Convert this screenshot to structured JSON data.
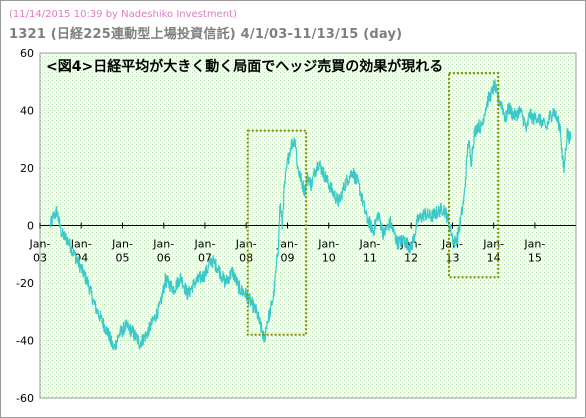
{
  "header": {
    "timestamp": "(11/14/2015 10:39 by Nadeshiko Investment)",
    "title": "1321 (日経225連動型上場投資信託) 4/1/03-11/13/15 (day)"
  },
  "colors": {
    "line": "#3cc8c8",
    "box": "#8a8a00",
    "plot_bg": "#f4fbf1",
    "grid": "#8fd08f"
  },
  "chart_data": {
    "type": "line",
    "title": "<図4>日経平均が大きく動く局面でヘッジ売買の効果が現れる",
    "xlabel": "",
    "ylabel": "",
    "ylim": [
      -60,
      60
    ],
    "yticks": [
      -60,
      -40,
      -20,
      0,
      20,
      40,
      60
    ],
    "grid": true,
    "x_tick_labels": [
      "Jan-\n03",
      "Jan-\n04",
      "Jan-\n05",
      "Jan-\n06",
      "Jan-\n07",
      "Jan-\n08",
      "Jan-\n09",
      "Jan-\n10",
      "Jan-\n11",
      "Jan-\n12",
      "Jan-\n13",
      "Jan-\n14",
      "Jan-\n15"
    ],
    "x_tick_dates": [
      "2003-01-01",
      "2004-01-01",
      "2005-01-01",
      "2006-01-01",
      "2007-01-01",
      "2008-01-01",
      "2009-01-01",
      "2010-01-01",
      "2011-01-01",
      "2012-01-01",
      "2013-01-01",
      "2014-01-01",
      "2015-01-01"
    ],
    "xlim": [
      "2003-01-01",
      "2015-12-31"
    ],
    "series": [
      {
        "values": [
          [
            "2003-04-01",
            0
          ],
          [
            "2003-05-01",
            3
          ],
          [
            "2003-06-01",
            5
          ],
          [
            "2003-06-20",
            1
          ],
          [
            "2003-07-15",
            -3
          ],
          [
            "2003-09-01",
            -5
          ],
          [
            "2003-11-01",
            -10
          ],
          [
            "2004-01-01",
            -15
          ],
          [
            "2004-03-01",
            -20
          ],
          [
            "2004-05-01",
            -28
          ],
          [
            "2004-07-01",
            -33
          ],
          [
            "2004-09-01",
            -38
          ],
          [
            "2004-10-15",
            -43
          ],
          [
            "2004-12-01",
            -38
          ],
          [
            "2005-02-01",
            -35
          ],
          [
            "2005-04-01",
            -37
          ],
          [
            "2005-06-01",
            -41
          ],
          [
            "2005-08-01",
            -38
          ],
          [
            "2005-10-01",
            -33
          ],
          [
            "2005-12-01",
            -28
          ],
          [
            "2006-01-15",
            -19
          ],
          [
            "2006-04-01",
            -22
          ],
          [
            "2006-06-01",
            -18
          ],
          [
            "2006-08-01",
            -24
          ],
          [
            "2006-10-01",
            -20
          ],
          [
            "2007-01-01",
            -17
          ],
          [
            "2007-03-01",
            -12
          ],
          [
            "2007-05-01",
            -15
          ],
          [
            "2007-07-01",
            -20
          ],
          [
            "2007-09-01",
            -16
          ],
          [
            "2007-11-01",
            -22
          ],
          [
            "2008-01-01",
            -24
          ],
          [
            "2008-02-15",
            -27
          ],
          [
            "2008-04-01",
            -30
          ],
          [
            "2008-05-15",
            -36
          ],
          [
            "2008-06-10",
            -40
          ],
          [
            "2008-07-01",
            -34
          ],
          [
            "2008-08-01",
            -30
          ],
          [
            "2008-09-01",
            -24
          ],
          [
            "2008-10-10",
            -8
          ],
          [
            "2008-10-28",
            8
          ],
          [
            "2008-11-15",
            0
          ],
          [
            "2008-12-01",
            12
          ],
          [
            "2009-01-01",
            22
          ],
          [
            "2009-02-01",
            28
          ],
          [
            "2009-03-10",
            30
          ],
          [
            "2009-04-01",
            20
          ],
          [
            "2009-05-01",
            16
          ],
          [
            "2009-06-01",
            12
          ],
          [
            "2009-07-01",
            17
          ],
          [
            "2009-08-01",
            14
          ],
          [
            "2009-09-01",
            19
          ],
          [
            "2009-10-01",
            22
          ],
          [
            "2009-12-01",
            17
          ],
          [
            "2010-02-01",
            12
          ],
          [
            "2010-04-01",
            8
          ],
          [
            "2010-06-01",
            15
          ],
          [
            "2010-08-01",
            19
          ],
          [
            "2010-10-01",
            13
          ],
          [
            "2010-12-01",
            3
          ],
          [
            "2011-02-01",
            -2
          ],
          [
            "2011-03-15",
            4
          ],
          [
            "2011-05-01",
            -3
          ],
          [
            "2011-07-01",
            1
          ],
          [
            "2011-09-01",
            -6
          ],
          [
            "2011-11-01",
            -5
          ],
          [
            "2012-01-01",
            -8
          ],
          [
            "2012-03-01",
            2
          ],
          [
            "2012-05-01",
            4
          ],
          [
            "2012-07-01",
            3
          ],
          [
            "2012-09-01",
            5
          ],
          [
            "2012-10-15",
            6
          ],
          [
            "2012-11-15",
            3
          ],
          [
            "2012-12-20",
            -2
          ],
          [
            "2013-01-15",
            -6
          ],
          [
            "2013-02-15",
            -4
          ],
          [
            "2013-03-15",
            2
          ],
          [
            "2013-04-15",
            10
          ],
          [
            "2013-05-22",
            30
          ],
          [
            "2013-06-13",
            22
          ],
          [
            "2013-07-15",
            32
          ],
          [
            "2013-08-15",
            35
          ],
          [
            "2013-09-15",
            34
          ],
          [
            "2013-10-15",
            40
          ],
          [
            "2013-11-15",
            44
          ],
          [
            "2013-12-15",
            46
          ],
          [
            "2014-01-10",
            49
          ],
          [
            "2014-02-05",
            44
          ],
          [
            "2014-03-15",
            42
          ],
          [
            "2014-04-15",
            37
          ],
          [
            "2014-05-15",
            41
          ],
          [
            "2014-06-15",
            39
          ],
          [
            "2014-07-15",
            38
          ],
          [
            "2014-08-15",
            40
          ],
          [
            "2014-09-15",
            38
          ],
          [
            "2014-10-20",
            33
          ],
          [
            "2014-11-15",
            39
          ],
          [
            "2014-12-15",
            37
          ],
          [
            "2015-01-15",
            38
          ],
          [
            "2015-03-01",
            36
          ],
          [
            "2015-04-15",
            34
          ],
          [
            "2015-05-15",
            38
          ],
          [
            "2015-06-15",
            40
          ],
          [
            "2015-07-15",
            37
          ],
          [
            "2015-08-15",
            34
          ],
          [
            "2015-09-01",
            24
          ],
          [
            "2015-09-15",
            19
          ],
          [
            "2015-10-01",
            27
          ],
          [
            "2015-10-15",
            32
          ],
          [
            "2015-11-13",
            30
          ]
        ]
      }
    ],
    "highlight_boxes": [
      {
        "x": [
          "2008-01-15",
          "2009-06-15"
        ],
        "y": [
          -38,
          33
        ]
      },
      {
        "x": [
          "2012-12-01",
          "2014-02-10"
        ],
        "y": [
          -18,
          53
        ]
      }
    ]
  }
}
